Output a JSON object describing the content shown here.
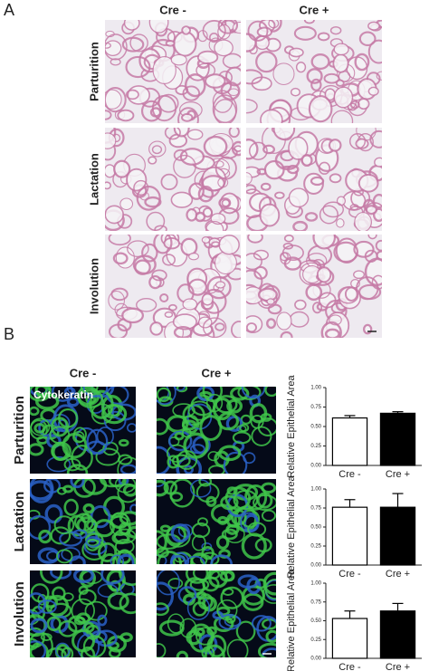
{
  "panels": {
    "a": "A",
    "b": "B"
  },
  "panel_a": {
    "columns": [
      "Cre -",
      "Cre +"
    ],
    "rows": [
      "Parturition",
      "Lactation",
      "Involution"
    ]
  },
  "panel_b": {
    "columns": [
      "Cre -",
      "Cre +"
    ],
    "rows": [
      "Parturition",
      "Lactation",
      "Involution"
    ],
    "stain": "Cytokeratin"
  },
  "chart_data": [
    {
      "type": "bar",
      "y_label": "Relative Epithelial Area",
      "categories": [
        "Cre -",
        "Cre +"
      ],
      "values": [
        0.61,
        0.67
      ],
      "errors": [
        0.03,
        0.02
      ],
      "colors": [
        "#ffffff",
        "#000000"
      ],
      "ylim": [
        0,
        1
      ],
      "yticks": [
        {
          "value": 0,
          "label": "0.00"
        },
        {
          "value": 0.25,
          "label": "0.25"
        },
        {
          "value": 0.5,
          "label": "0.50"
        },
        {
          "value": 0.75,
          "label": "0.75"
        },
        {
          "value": 1,
          "label": "1.00"
        }
      ]
    },
    {
      "type": "bar",
      "y_label": "Relative Epithelial Area",
      "categories": [
        "Cre -",
        "Cre +"
      ],
      "values": [
        0.76,
        0.76
      ],
      "errors": [
        0.1,
        0.18
      ],
      "colors": [
        "#ffffff",
        "#000000"
      ],
      "ylim": [
        0,
        1
      ],
      "yticks": [
        {
          "value": 0,
          "label": "0.00"
        },
        {
          "value": 0.25,
          "label": "0.25"
        },
        {
          "value": 0.5,
          "label": "0.50"
        },
        {
          "value": 0.75,
          "label": "0.75"
        },
        {
          "value": 1,
          "label": "1.00"
        }
      ]
    },
    {
      "type": "bar",
      "y_label": "Relative Epithelial Area",
      "categories": [
        "Cre -",
        "Cre +"
      ],
      "values": [
        0.53,
        0.63
      ],
      "errors": [
        0.1,
        0.1
      ],
      "colors": [
        "#ffffff",
        "#000000"
      ],
      "ylim": [
        0,
        1
      ],
      "yticks": [
        {
          "value": 0,
          "label": "0.00"
        },
        {
          "value": 0.25,
          "label": "0.25"
        },
        {
          "value": 0.5,
          "label": "0.50"
        },
        {
          "value": 0.75,
          "label": "0.75"
        },
        {
          "value": 1,
          "label": "1.00"
        }
      ]
    }
  ]
}
